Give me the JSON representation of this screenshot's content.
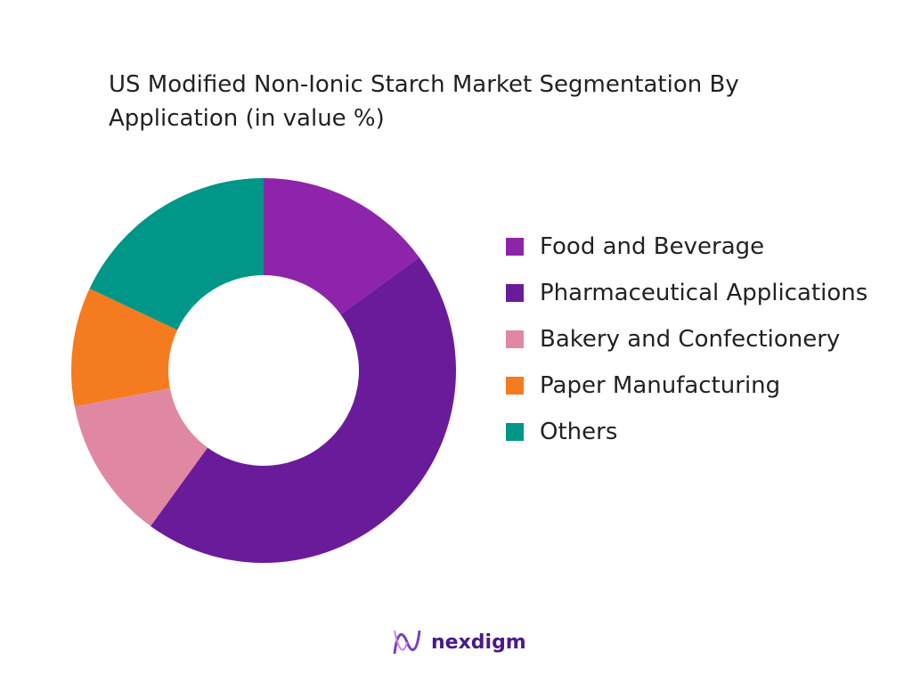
{
  "chart_data": {
    "type": "donut",
    "title": "US Modified Non-Ionic Starch Market Segmentation By Application (in value %)",
    "categories": [
      "Food and Beverage",
      "Pharmaceutical Applications",
      "Bakery and Confectionery",
      "Paper Manufacturing",
      "Others"
    ],
    "values": [
      15,
      45,
      12,
      10,
      18
    ],
    "colors": [
      "#8e24aa",
      "#6a1b9a",
      "#e088a2",
      "#f47b20",
      "#009688"
    ],
    "legend": "right"
  },
  "brand": "nexdigm"
}
